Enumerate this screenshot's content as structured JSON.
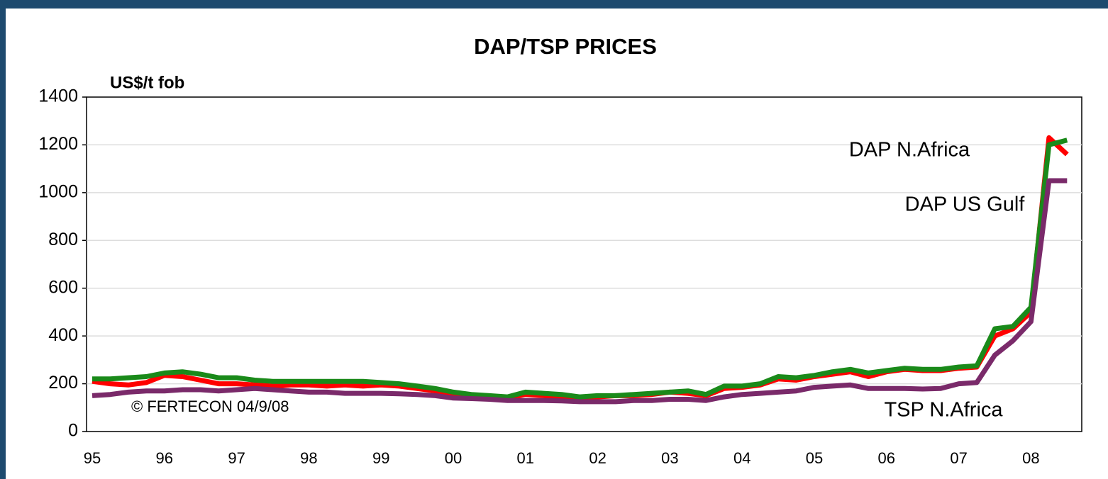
{
  "chart_data": {
    "type": "line",
    "title": "DAP/TSP PRICES",
    "y_label": "US$/t fob",
    "annotation": "© FERTECON 04/9/08",
    "categories": [
      "95",
      null,
      null,
      null,
      "96",
      null,
      null,
      null,
      "97",
      null,
      null,
      null,
      "98",
      null,
      null,
      null,
      "99",
      null,
      null,
      null,
      "00",
      null,
      null,
      null,
      "01",
      null,
      null,
      null,
      "02",
      null,
      null,
      null,
      "03",
      null,
      null,
      null,
      "04",
      null,
      null,
      null,
      "05",
      null,
      null,
      null,
      "06",
      null,
      null,
      null,
      "07",
      null,
      null,
      null,
      "08",
      null,
      null
    ],
    "series": [
      {
        "name": "DAP US Gulf",
        "color": "#ff0000",
        "values": [
          210,
          200,
          195,
          205,
          235,
          230,
          215,
          200,
          200,
          195,
          190,
          195,
          195,
          190,
          195,
          190,
          195,
          190,
          180,
          170,
          155,
          150,
          145,
          140,
          155,
          150,
          145,
          140,
          145,
          150,
          150,
          155,
          165,
          160,
          150,
          180,
          185,
          195,
          220,
          215,
          230,
          240,
          250,
          230,
          250,
          260,
          255,
          255,
          265,
          270,
          400,
          430,
          500,
          1230,
          1160
        ]
      },
      {
        "name": "DAP N.Africa",
        "color": "#1a8a1a",
        "values": [
          220,
          220,
          225,
          230,
          245,
          250,
          240,
          225,
          225,
          215,
          210,
          210,
          210,
          210,
          210,
          210,
          205,
          200,
          190,
          180,
          165,
          155,
          150,
          145,
          165,
          160,
          155,
          145,
          150,
          150,
          155,
          160,
          165,
          170,
          155,
          190,
          190,
          200,
          230,
          225,
          235,
          250,
          260,
          245,
          255,
          265,
          260,
          260,
          270,
          275,
          430,
          440,
          520,
          1200,
          1220
        ]
      },
      {
        "name": "TSP N.Africa",
        "color": "#7a2a6a",
        "values": [
          150,
          155,
          165,
          170,
          170,
          175,
          175,
          170,
          175,
          180,
          175,
          170,
          165,
          165,
          160,
          160,
          160,
          158,
          155,
          150,
          140,
          138,
          135,
          130,
          130,
          130,
          128,
          125,
          125,
          125,
          130,
          130,
          135,
          135,
          130,
          145,
          155,
          160,
          165,
          170,
          185,
          190,
          195,
          180,
          180,
          180,
          178,
          180,
          200,
          205,
          320,
          380,
          460,
          1050,
          1050
        ]
      }
    ],
    "ylim": [
      0,
      1400
    ],
    "yticks": [
      0,
      200,
      400,
      600,
      800,
      1000,
      1200,
      1400
    ],
    "grid": true
  }
}
